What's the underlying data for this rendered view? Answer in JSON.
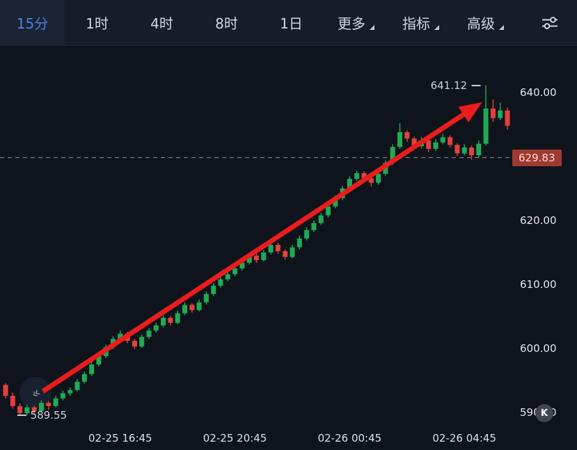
{
  "toolbar": {
    "tabs": [
      {
        "label": "15分",
        "active": true
      },
      {
        "label": "1时"
      },
      {
        "label": "4时"
      },
      {
        "label": "8时"
      },
      {
        "label": "1日"
      }
    ],
    "menus": [
      {
        "label": "更多"
      },
      {
        "label": "指标"
      },
      {
        "label": "高级"
      }
    ]
  },
  "colors": {
    "up": "#1fab54",
    "down": "#e2413c",
    "arrow": "#ea1c1c",
    "accent": "#4c7fe0",
    "price_badge_bg": "#a03a31",
    "grid": "#20262f"
  },
  "axis": {
    "price_labels": [
      "640.00",
      "620.00",
      "610.00",
      "600.00",
      "590.00"
    ]
  },
  "price_line": {
    "value": "629.83"
  },
  "watermarks": {
    "k_label": "K",
    "start_glyph": "«"
  },
  "chart_data": {
    "type": "candlestick",
    "interval": "15分",
    "title": "",
    "ylim": [
      588,
      646
    ],
    "grid_levels": [
      640,
      630,
      620,
      610,
      600,
      590
    ],
    "x_ticks": [
      {
        "label": "02-25 16:45",
        "candle": 16
      },
      {
        "label": "02-25 20:45",
        "candle": 32
      },
      {
        "label": "02-26 00:45",
        "candle": 48
      },
      {
        "label": "02-26 04:45",
        "candle": 64
      }
    ],
    "markers": {
      "high": {
        "value": "641.12",
        "candle": 67
      },
      "low": {
        "value": "589.55",
        "candle": 2
      }
    },
    "annotation_arrow": {
      "from": {
        "candle": 5.2,
        "price": 593.3
      },
      "to": {
        "candle": 64.2,
        "price": 636.8
      }
    },
    "candles": [
      [
        594.3,
        594.6,
        592.2,
        592.6
      ],
      [
        592.6,
        593.1,
        590.6,
        591.0
      ],
      [
        591.0,
        591.4,
        589.55,
        589.9
      ],
      [
        589.9,
        591.2,
        589.6,
        590.8
      ],
      [
        590.8,
        591.1,
        589.8,
        590.2
      ],
      [
        590.2,
        591.9,
        590.0,
        591.5
      ],
      [
        591.5,
        591.8,
        590.4,
        591.0
      ],
      [
        591.0,
        592.6,
        590.8,
        592.2
      ],
      [
        592.2,
        593.4,
        591.9,
        593.0
      ],
      [
        593.0,
        593.9,
        592.6,
        593.5
      ],
      [
        593.5,
        595.2,
        593.3,
        594.8
      ],
      [
        594.8,
        596.4,
        594.5,
        596.0
      ],
      [
        596.0,
        597.9,
        595.7,
        597.5
      ],
      [
        597.5,
        599.2,
        597.2,
        598.8
      ],
      [
        598.8,
        600.6,
        598.5,
        600.2
      ],
      [
        600.2,
        601.9,
        599.9,
        601.5
      ],
      [
        601.5,
        602.8,
        601.1,
        602.3
      ],
      [
        602.3,
        602.6,
        600.8,
        601.2
      ],
      [
        601.2,
        601.5,
        599.9,
        600.3
      ],
      [
        600.3,
        602.2,
        600.1,
        601.8
      ],
      [
        601.8,
        603.2,
        601.5,
        602.8
      ],
      [
        602.8,
        604.0,
        602.5,
        603.6
      ],
      [
        603.6,
        605.2,
        603.3,
        604.8
      ],
      [
        604.8,
        605.1,
        603.6,
        604.0
      ],
      [
        604.0,
        605.9,
        603.8,
        605.5
      ],
      [
        605.5,
        607.2,
        605.2,
        606.8
      ],
      [
        606.8,
        607.1,
        605.6,
        606.0
      ],
      [
        606.0,
        607.6,
        605.8,
        607.2
      ],
      [
        607.2,
        608.9,
        606.9,
        608.5
      ],
      [
        608.5,
        610.2,
        608.2,
        609.8
      ],
      [
        609.8,
        611.2,
        609.5,
        610.8
      ],
      [
        610.8,
        612.0,
        610.5,
        611.6
      ],
      [
        611.6,
        612.9,
        611.3,
        612.5
      ],
      [
        612.5,
        613.8,
        612.2,
        613.4
      ],
      [
        613.4,
        614.9,
        613.1,
        614.5
      ],
      [
        614.5,
        614.8,
        613.4,
        613.8
      ],
      [
        613.8,
        615.4,
        613.6,
        615.0
      ],
      [
        615.0,
        616.6,
        614.7,
        616.2
      ],
      [
        616.2,
        616.5,
        614.8,
        615.2
      ],
      [
        615.2,
        615.5,
        613.9,
        614.3
      ],
      [
        614.3,
        616.2,
        614.1,
        615.8
      ],
      [
        615.8,
        617.6,
        615.5,
        617.2
      ],
      [
        617.2,
        618.9,
        616.9,
        618.5
      ],
      [
        618.5,
        620.0,
        618.2,
        619.6
      ],
      [
        619.6,
        621.2,
        619.3,
        620.8
      ],
      [
        620.8,
        622.6,
        620.5,
        622.2
      ],
      [
        622.2,
        623.9,
        621.9,
        623.5
      ],
      [
        623.5,
        625.4,
        623.2,
        625.0
      ],
      [
        625.0,
        626.9,
        624.7,
        626.5
      ],
      [
        626.5,
        627.8,
        626.2,
        627.4
      ],
      [
        627.4,
        627.7,
        626.2,
        626.6
      ],
      [
        626.6,
        626.9,
        625.3,
        625.9
      ],
      [
        625.9,
        627.7,
        625.6,
        627.3
      ],
      [
        627.3,
        629.4,
        627.0,
        629.0
      ],
      [
        629.0,
        631.9,
        628.7,
        631.5
      ],
      [
        631.5,
        635.2,
        631.2,
        633.8
      ],
      [
        633.8,
        634.1,
        632.3,
        632.8
      ],
      [
        632.8,
        633.1,
        631.1,
        631.6
      ],
      [
        631.6,
        633.0,
        631.3,
        632.5
      ],
      [
        632.5,
        632.8,
        630.7,
        631.2
      ],
      [
        631.2,
        632.7,
        630.9,
        632.2
      ],
      [
        632.2,
        633.5,
        631.9,
        633.0
      ],
      [
        633.0,
        633.3,
        631.4,
        631.8
      ],
      [
        631.8,
        632.1,
        630.1,
        630.5
      ],
      [
        630.5,
        631.9,
        630.2,
        631.4
      ],
      [
        631.4,
        631.7,
        629.5,
        630.2
      ],
      [
        630.2,
        632.5,
        629.9,
        632.0
      ],
      [
        632.0,
        641.12,
        631.7,
        637.5
      ],
      [
        637.5,
        638.9,
        635.4,
        636.0
      ],
      [
        636.0,
        638.4,
        635.7,
        637.2
      ],
      [
        637.2,
        637.6,
        634.2,
        634.8
      ]
    ]
  }
}
